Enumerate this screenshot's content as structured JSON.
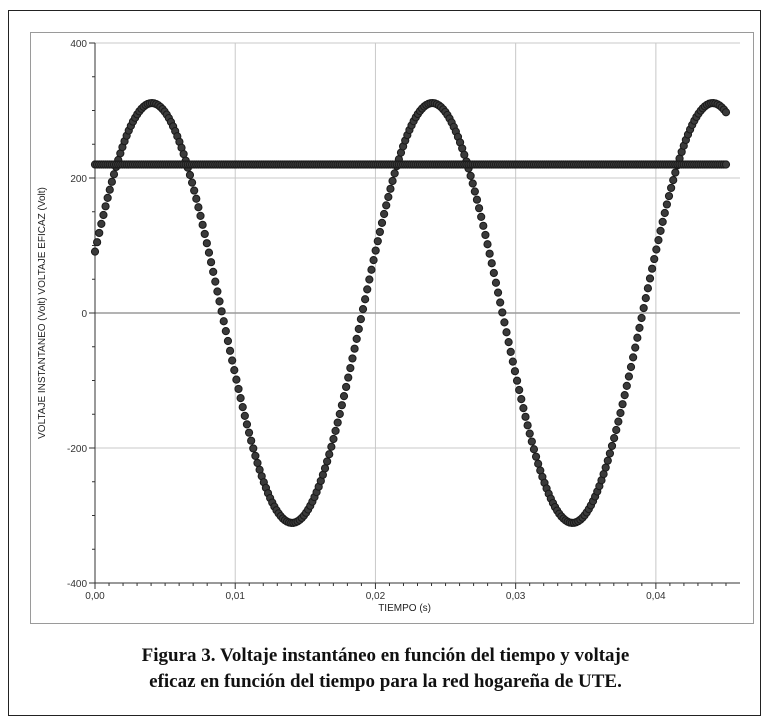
{
  "chart_data": {
    "type": "scatter",
    "xlabel": "TIEMPO (s)",
    "ylabel": "VOLTAJE INSTANTANEO (Volt)   VOLTAJE EFICAZ (Volt)",
    "xlim": [
      0,
      0.046
    ],
    "ylim": [
      -400,
      400
    ],
    "x_ticks": [
      "0,00",
      "0,01",
      "0,02",
      "0,03",
      "0,04"
    ],
    "y_ticks": [
      "400",
      "200",
      "0",
      "-200",
      "-400"
    ],
    "grid": true,
    "series": [
      {
        "kind": "sine",
        "amplitude": 311,
        "frequency": 50,
        "phase_deg": 17,
        "x_start": 0,
        "x_end": 0.045,
        "points": 300,
        "color": "#1a1a1a"
      },
      {
        "kind": "constant",
        "value": 220,
        "x_start": 0,
        "x_end": 0.045,
        "points": 300,
        "color": "#1a1a1a"
      }
    ]
  },
  "caption": {
    "line1": "Figura 3. Voltaje instantáneo en función del tiempo y voltaje",
    "line2": "eficaz en función del tiempo para la red hogareña de UTE."
  }
}
